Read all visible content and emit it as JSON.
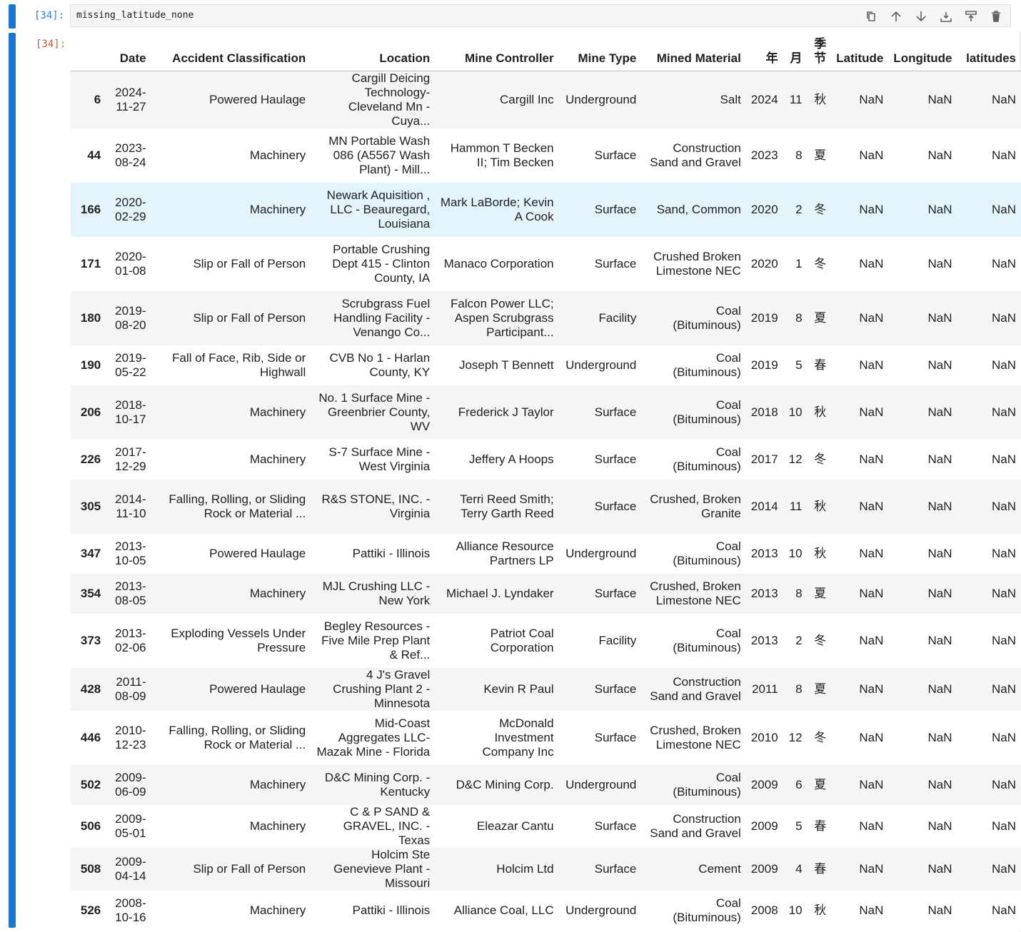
{
  "input": {
    "prompt": "[34]:",
    "code": "missing_latitude_none"
  },
  "output": {
    "prompt": "[34]:"
  },
  "toolbar": {
    "buttons": [
      "duplicate-icon",
      "move-up-icon",
      "move-down-icon",
      "insert-below-icon",
      "insert-above-icon",
      "delete-icon"
    ]
  },
  "table": {
    "columns": [
      "",
      "Date",
      "Accident Classification",
      "Location",
      "Mine Controller",
      "Mine Type",
      "Mined Material",
      "年",
      "月",
      "季节",
      "Latitude",
      "Longitude",
      "latitudes"
    ],
    "rows": [
      [
        "6",
        "2024-11-27",
        "Powered Haulage",
        "Cargill Deicing Technology-Cleveland Mn - Cuya...",
        "Cargill Inc",
        "Underground",
        "Salt",
        "2024",
        "11",
        "秋",
        "NaN",
        "NaN",
        "NaN"
      ],
      [
        "44",
        "2023-08-24",
        "Machinery",
        "MN Portable Wash 086 (A5567 Wash Plant) - Mill...",
        "Hammon T Becken II; Tim Becken",
        "Surface",
        "Construction Sand and Gravel",
        "2023",
        "8",
        "夏",
        "NaN",
        "NaN",
        "NaN"
      ],
      [
        "166",
        "2020-02-29",
        "Machinery",
        "Newark Aquisition , LLC - Beauregard, Louisiana",
        "Mark LaBorde; Kevin A Cook",
        "Surface",
        "Sand, Common",
        "2020",
        "2",
        "冬",
        "NaN",
        "NaN",
        "NaN"
      ],
      [
        "171",
        "2020-01-08",
        "Slip or Fall of Person",
        "Portable Crushing Dept 415 - Clinton County, IA",
        "Manaco Corporation",
        "Surface",
        "Crushed Broken Limestone NEC",
        "2020",
        "1",
        "冬",
        "NaN",
        "NaN",
        "NaN"
      ],
      [
        "180",
        "2019-08-20",
        "Slip or Fall of Person",
        "Scrubgrass Fuel Handling Facility - Venango Co...",
        "Falcon Power LLC; Aspen Scrubgrass Participant...",
        "Facility",
        "Coal (Bituminous)",
        "2019",
        "8",
        "夏",
        "NaN",
        "NaN",
        "NaN"
      ],
      [
        "190",
        "2019-05-22",
        "Fall of Face, Rib, Side or Highwall",
        "CVB No 1 - Harlan County, KY",
        "Joseph T Bennett",
        "Underground",
        "Coal (Bituminous)",
        "2019",
        "5",
        "春",
        "NaN",
        "NaN",
        "NaN"
      ],
      [
        "206",
        "2018-10-17",
        "Machinery",
        "No. 1 Surface Mine - Greenbrier County, WV",
        "Frederick J Taylor",
        "Surface",
        "Coal (Bituminous)",
        "2018",
        "10",
        "秋",
        "NaN",
        "NaN",
        "NaN"
      ],
      [
        "226",
        "2017-12-29",
        "Machinery",
        "S-7 Surface Mine - West Virginia",
        "Jeffery A Hoops",
        "Surface",
        "Coal (Bituminous)",
        "2017",
        "12",
        "冬",
        "NaN",
        "NaN",
        "NaN"
      ],
      [
        "305",
        "2014-11-10",
        "Falling, Rolling, or Sliding Rock or Material ...",
        "R&S STONE, INC. - Virginia",
        "Terri Reed Smith; Terry Garth Reed",
        "Surface",
        "Crushed, Broken Granite",
        "2014",
        "11",
        "秋",
        "NaN",
        "NaN",
        "NaN"
      ],
      [
        "347",
        "2013-10-05",
        "Powered Haulage",
        "Pattiki - Illinois",
        "Alliance Resource Partners LP",
        "Underground",
        "Coal (Bituminous)",
        "2013",
        "10",
        "秋",
        "NaN",
        "NaN",
        "NaN"
      ],
      [
        "354",
        "2013-08-05",
        "Machinery",
        "MJL Crushing LLC - New York",
        "Michael J. Lyndaker",
        "Surface",
        "Crushed, Broken Limestone NEC",
        "2013",
        "8",
        "夏",
        "NaN",
        "NaN",
        "NaN"
      ],
      [
        "373",
        "2013-02-06",
        "Exploding Vessels Under Pressure",
        "Begley Resources - Five Mile Prep Plant & Ref...",
        "Patriot Coal Corporation",
        "Facility",
        "Coal (Bituminous)",
        "2013",
        "2",
        "冬",
        "NaN",
        "NaN",
        "NaN"
      ],
      [
        "428",
        "2011-08-09",
        "Powered Haulage",
        "4 J's Gravel Crushing Plant 2 - Minnesota",
        "Kevin R Paul",
        "Surface",
        "Construction Sand and Gravel",
        "2011",
        "8",
        "夏",
        "NaN",
        "NaN",
        "NaN"
      ],
      [
        "446",
        "2010-12-23",
        "Falling, Rolling, or Sliding Rock or Material ...",
        "Mid-Coast Aggregates LLC- Mazak Mine - Florida",
        "McDonald Investment Company Inc",
        "Surface",
        "Crushed, Broken Limestone NEC",
        "2010",
        "12",
        "冬",
        "NaN",
        "NaN",
        "NaN"
      ],
      [
        "502",
        "2009-06-09",
        "Machinery",
        "D&C Mining Corp. - Kentucky",
        "D&C Mining Corp.",
        "Underground",
        "Coal (Bituminous)",
        "2009",
        "6",
        "夏",
        "NaN",
        "NaN",
        "NaN"
      ],
      [
        "506",
        "2009-05-01",
        "Machinery",
        "C & P SAND & GRAVEL, INC. - Texas",
        "Eleazar Cantu",
        "Surface",
        "Construction Sand and Gravel",
        "2009",
        "5",
        "春",
        "NaN",
        "NaN",
        "NaN"
      ],
      [
        "508",
        "2009-04-14",
        "Slip or Fall of Person",
        "Holcim Ste Genevieve Plant - Missouri",
        "Holcim Ltd",
        "Surface",
        "Cement",
        "2009",
        "4",
        "春",
        "NaN",
        "NaN",
        "NaN"
      ],
      [
        "526",
        "2008-10-16",
        "Machinery",
        "Pattiki - Illinois",
        "Alliance Coal, LLC",
        "Underground",
        "Coal (Bituminous)",
        "2008",
        "10",
        "秋",
        "NaN",
        "NaN",
        "NaN"
      ]
    ]
  }
}
